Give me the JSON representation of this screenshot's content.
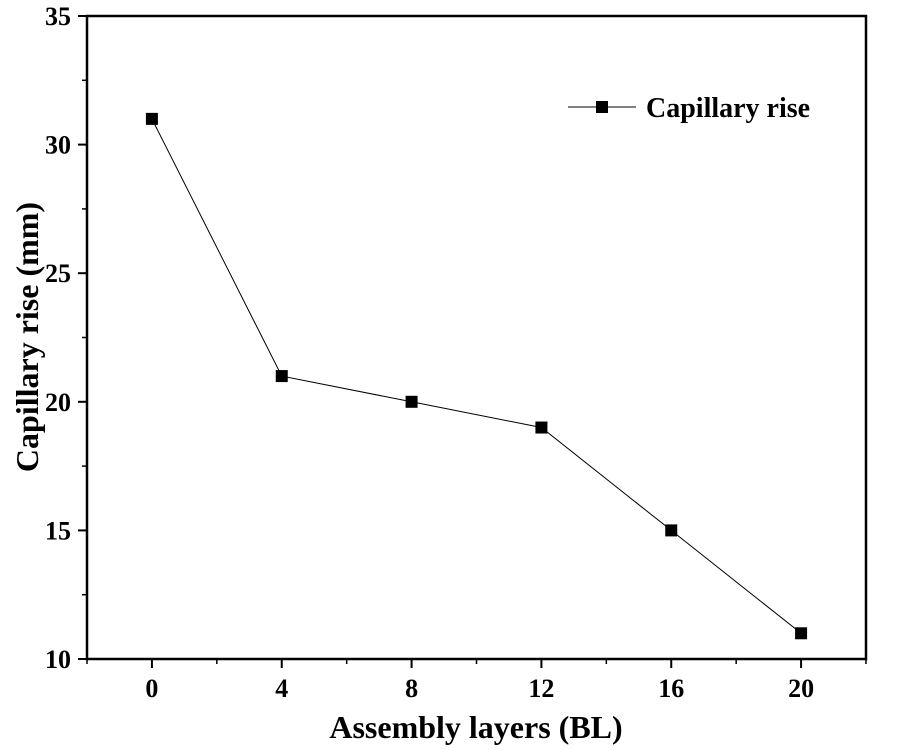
{
  "chart_data": {
    "type": "line",
    "xlabel": "Assembly layers (BL)",
    "ylabel": "Capillary rise (mm)",
    "x": [
      0,
      4,
      8,
      12,
      16,
      20
    ],
    "xticks": [
      "0",
      "4",
      "8",
      "12",
      "16",
      "20"
    ],
    "yticks": [
      "10",
      "15",
      "20",
      "25",
      "30",
      "35"
    ],
    "xlim": [
      -2,
      22
    ],
    "ylim": [
      10,
      35
    ],
    "series": [
      {
        "name": "Capillary rise",
        "values": [
          31,
          21,
          20,
          19,
          15,
          11
        ],
        "marker": "square",
        "color": "#000000"
      }
    ],
    "legend_position": "top-right",
    "grid": false
  }
}
